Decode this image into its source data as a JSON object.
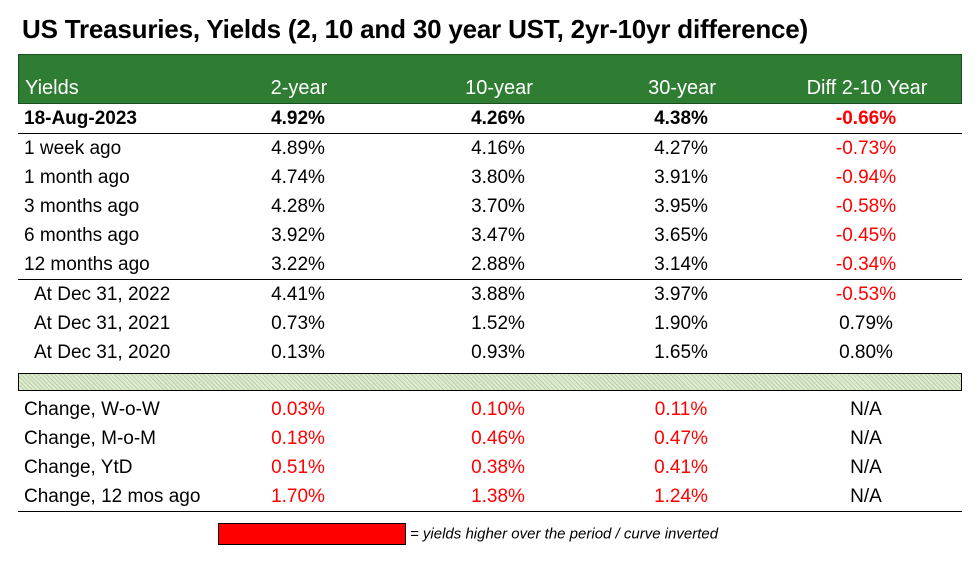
{
  "title": "US Treasuries, Yields (2, 10 and 30 year UST, 2yr-10yr difference)",
  "colors": {
    "header_bg": "#2e7d32",
    "negative": "#ff0000",
    "legend_swatch": "#ff0000"
  },
  "header": [
    "Yields",
    "2-year",
    "10-year",
    "30-year",
    "Diff 2-10 Year"
  ],
  "current": {
    "label": "18-Aug-2023",
    "y2": "4.92%",
    "y10": "4.26%",
    "y30": "4.38%",
    "diff": "-0.66%"
  },
  "history": [
    {
      "label": "1 week ago",
      "y2": "4.89%",
      "y10": "4.16%",
      "y30": "4.27%",
      "diff": "-0.73%"
    },
    {
      "label": "1 month ago",
      "y2": "4.74%",
      "y10": "3.80%",
      "y30": "3.91%",
      "diff": "-0.94%"
    },
    {
      "label": "3 months ago",
      "y2": "4.28%",
      "y10": "3.70%",
      "y30": "3.95%",
      "diff": "-0.58%"
    },
    {
      "label": "6 months ago",
      "y2": "3.92%",
      "y10": "3.47%",
      "y30": "3.65%",
      "diff": "-0.45%"
    },
    {
      "label": "12 months ago",
      "y2": "3.22%",
      "y10": "2.88%",
      "y30": "3.14%",
      "diff": "-0.34%"
    }
  ],
  "year_end": [
    {
      "label": "At Dec 31, 2022",
      "y2": "4.41%",
      "y10": "3.88%",
      "y30": "3.97%",
      "diff": "-0.53%"
    },
    {
      "label": "At Dec 31, 2021",
      "y2": "0.73%",
      "y10": "1.52%",
      "y30": "1.90%",
      "diff": "0.79%"
    },
    {
      "label": "At Dec 31, 2020",
      "y2": "0.13%",
      "y10": "0.93%",
      "y30": "1.65%",
      "diff": "0.80%"
    }
  ],
  "changes": [
    {
      "label": "Change, W-o-W",
      "y2": "0.03%",
      "y10": "0.10%",
      "y30": "0.11%",
      "diff": "N/A"
    },
    {
      "label": "Change, M-o-M",
      "y2": "0.18%",
      "y10": "0.46%",
      "y30": "0.47%",
      "diff": "N/A"
    },
    {
      "label": "Change, YtD",
      "y2": "0.51%",
      "y10": "0.38%",
      "y30": "0.41%",
      "diff": "N/A"
    },
    {
      "label": "Change, 12 mos ago",
      "y2": "1.70%",
      "y10": "1.38%",
      "y30": "1.24%",
      "diff": "N/A"
    }
  ],
  "legend": {
    "text": "= yields higher over the period / curve inverted"
  }
}
